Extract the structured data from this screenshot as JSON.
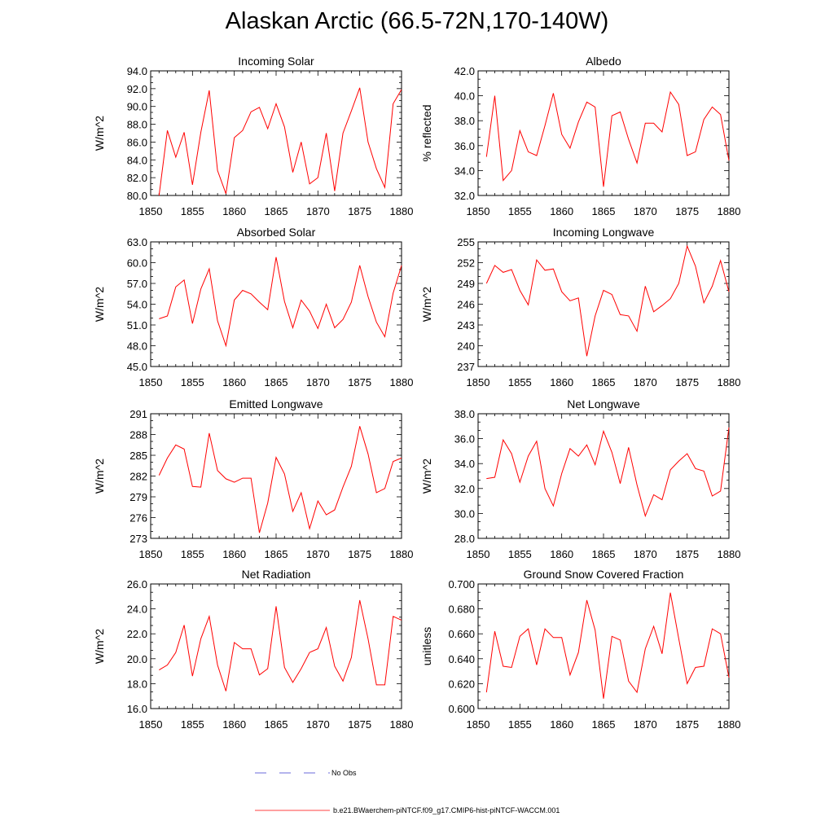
{
  "title": "Alaskan Arctic (66.5-72N,170-140W)",
  "legend": {
    "no_obs_label": "No Obs",
    "no_obs_color": "#3a3ad0",
    "model_label": "b.e21.BWaerchem-piNTCF.f09_g17.CMIP6-hist-piNTCF-WACCM.001",
    "model_color": "#ff0000"
  },
  "chart_data": [
    {
      "type": "line",
      "title": "Incoming Solar",
      "ylabel": "W/m^2",
      "xlim": [
        1850,
        1880
      ],
      "ylim": [
        80.0,
        94.0
      ],
      "xticks": [
        "1850",
        "1855",
        "1860",
        "1865",
        "1870",
        "1875",
        "1880"
      ],
      "yticks": [
        "80.0",
        "82.0",
        "84.0",
        "86.0",
        "88.0",
        "90.0",
        "92.0",
        "94.0"
      ],
      "x": [
        1851,
        1852,
        1853,
        1854,
        1855,
        1856,
        1857,
        1858,
        1859,
        1860,
        1861,
        1862,
        1863,
        1864,
        1865,
        1866,
        1867,
        1868,
        1869,
        1870,
        1871,
        1872,
        1873,
        1874,
        1875,
        1876,
        1877,
        1878,
        1879,
        1880
      ],
      "series": [
        {
          "values": [
            80.0,
            87.3,
            84.3,
            87.1,
            81.2,
            87.1,
            91.8,
            82.8,
            80.2,
            86.5,
            87.3,
            89.4,
            89.9,
            87.5,
            90.3,
            87.7,
            82.6,
            86.0,
            81.3,
            82.0,
            87.0,
            80.5,
            87.0,
            89.5,
            92.1,
            86.0,
            83.0,
            80.9,
            90.3,
            91.9
          ]
        }
      ]
    },
    {
      "type": "line",
      "title": "Albedo",
      "ylabel": "% reflected",
      "xlim": [
        1850,
        1880
      ],
      "ylim": [
        32.0,
        42.0
      ],
      "xticks": [
        "1850",
        "1855",
        "1860",
        "1865",
        "1870",
        "1875",
        "1880"
      ],
      "yticks": [
        "32.0",
        "34.0",
        "36.0",
        "38.0",
        "40.0",
        "42.0"
      ],
      "x": [
        1851,
        1852,
        1853,
        1854,
        1855,
        1856,
        1857,
        1858,
        1859,
        1860,
        1861,
        1862,
        1863,
        1864,
        1865,
        1866,
        1867,
        1868,
        1869,
        1870,
        1871,
        1872,
        1873,
        1874,
        1875,
        1876,
        1877,
        1878,
        1879,
        1880
      ],
      "series": [
        {
          "values": [
            35.1,
            40.0,
            33.2,
            34.0,
            37.2,
            35.5,
            35.2,
            37.6,
            40.2,
            36.9,
            35.8,
            37.9,
            39.5,
            39.1,
            32.7,
            38.4,
            38.7,
            36.5,
            34.6,
            37.8,
            37.8,
            37.1,
            40.3,
            39.3,
            35.2,
            35.5,
            38.1,
            39.1,
            38.5,
            34.8
          ]
        }
      ]
    },
    {
      "type": "line",
      "title": "Absorbed Solar",
      "ylabel": "W/m^2",
      "xlim": [
        1850,
        1880
      ],
      "ylim": [
        45.0,
        63.0
      ],
      "xticks": [
        "1850",
        "1855",
        "1860",
        "1865",
        "1870",
        "1875",
        "1880"
      ],
      "yticks": [
        "45.0",
        "48.0",
        "51.0",
        "54.0",
        "57.0",
        "60.0",
        "63.0"
      ],
      "x": [
        1851,
        1852,
        1853,
        1854,
        1855,
        1856,
        1857,
        1858,
        1859,
        1860,
        1861,
        1862,
        1863,
        1864,
        1865,
        1866,
        1867,
        1868,
        1869,
        1870,
        1871,
        1872,
        1873,
        1874,
        1875,
        1876,
        1877,
        1878,
        1879,
        1880
      ],
      "series": [
        {
          "values": [
            51.9,
            52.3,
            56.5,
            57.5,
            51.2,
            56.2,
            59.1,
            51.6,
            48.0,
            54.6,
            56.0,
            55.5,
            54.3,
            53.2,
            60.8,
            54.4,
            50.6,
            54.6,
            53.0,
            50.5,
            54.0,
            50.6,
            51.8,
            54.3,
            59.6,
            55.1,
            51.4,
            49.3,
            55.6,
            59.6
          ]
        }
      ]
    },
    {
      "type": "line",
      "title": "Incoming Longwave",
      "ylabel": "W/m^2",
      "xlim": [
        1850,
        1880
      ],
      "ylim": [
        237,
        255
      ],
      "xticks": [
        "1850",
        "1855",
        "1860",
        "1865",
        "1870",
        "1875",
        "1880"
      ],
      "yticks": [
        "237",
        "240",
        "243",
        "246",
        "249",
        "252",
        "255"
      ],
      "x": [
        1851,
        1852,
        1853,
        1854,
        1855,
        1856,
        1857,
        1858,
        1859,
        1860,
        1861,
        1862,
        1863,
        1864,
        1865,
        1866,
        1867,
        1868,
        1869,
        1870,
        1871,
        1872,
        1873,
        1874,
        1875,
        1876,
        1877,
        1878,
        1879,
        1880
      ],
      "series": [
        {
          "values": [
            249.0,
            251.6,
            250.6,
            251.0,
            248.0,
            245.9,
            252.4,
            250.9,
            251.1,
            247.8,
            246.5,
            246.9,
            238.5,
            244.3,
            248.0,
            247.4,
            244.5,
            244.3,
            242.1,
            248.6,
            244.9,
            245.8,
            246.8,
            249.0,
            254.4,
            251.5,
            246.2,
            248.6,
            252.3,
            247.8
          ]
        }
      ]
    },
    {
      "type": "line",
      "title": "Emitted Longwave",
      "ylabel": "W/m^2",
      "xlim": [
        1850,
        1880
      ],
      "ylim": [
        273,
        291
      ],
      "xticks": [
        "1850",
        "1855",
        "1860",
        "1865",
        "1870",
        "1875",
        "1880"
      ],
      "yticks": [
        "273",
        "276",
        "279",
        "282",
        "285",
        "288",
        "291"
      ],
      "x": [
        1851,
        1852,
        1853,
        1854,
        1855,
        1856,
        1857,
        1858,
        1859,
        1860,
        1861,
        1862,
        1863,
        1864,
        1865,
        1866,
        1867,
        1868,
        1869,
        1870,
        1871,
        1872,
        1873,
        1874,
        1875,
        1876,
        1877,
        1878,
        1879,
        1880
      ],
      "series": [
        {
          "values": [
            282.1,
            284.6,
            286.5,
            285.9,
            280.5,
            280.4,
            288.2,
            282.8,
            281.6,
            281.1,
            281.7,
            281.7,
            273.8,
            278.1,
            284.7,
            282.3,
            276.9,
            279.6,
            274.4,
            278.4,
            276.4,
            277.1,
            280.4,
            283.4,
            289.2,
            285.2,
            279.6,
            280.2,
            284.1,
            284.6
          ]
        }
      ]
    },
    {
      "type": "line",
      "title": "Net Longwave",
      "ylabel": "W/m^2",
      "xlim": [
        1850,
        1880
      ],
      "ylim": [
        28.0,
        38.0
      ],
      "xticks": [
        "1850",
        "1855",
        "1860",
        "1865",
        "1870",
        "1875",
        "1880"
      ],
      "yticks": [
        "28.0",
        "30.0",
        "32.0",
        "34.0",
        "36.0",
        "38.0"
      ],
      "x": [
        1851,
        1852,
        1853,
        1854,
        1855,
        1856,
        1857,
        1858,
        1859,
        1860,
        1861,
        1862,
        1863,
        1864,
        1865,
        1866,
        1867,
        1868,
        1869,
        1870,
        1871,
        1872,
        1873,
        1874,
        1875,
        1876,
        1877,
        1878,
        1879,
        1880
      ],
      "series": [
        {
          "values": [
            32.8,
            32.9,
            35.9,
            34.8,
            32.5,
            34.6,
            35.8,
            32.0,
            30.6,
            33.2,
            35.2,
            34.6,
            35.5,
            33.9,
            36.6,
            34.9,
            32.4,
            35.3,
            32.3,
            29.8,
            31.5,
            31.1,
            33.5,
            34.2,
            34.8,
            33.6,
            33.4,
            31.4,
            31.8,
            36.9
          ]
        }
      ]
    },
    {
      "type": "line",
      "title": "Net Radiation",
      "ylabel": "W/m^2",
      "xlim": [
        1850,
        1880
      ],
      "ylim": [
        16.0,
        26.0
      ],
      "xticks": [
        "1850",
        "1855",
        "1860",
        "1865",
        "1870",
        "1875",
        "1880"
      ],
      "yticks": [
        "16.0",
        "18.0",
        "20.0",
        "22.0",
        "24.0",
        "26.0"
      ],
      "x": [
        1851,
        1852,
        1853,
        1854,
        1855,
        1856,
        1857,
        1858,
        1859,
        1860,
        1861,
        1862,
        1863,
        1864,
        1865,
        1866,
        1867,
        1868,
        1869,
        1870,
        1871,
        1872,
        1873,
        1874,
        1875,
        1876,
        1877,
        1878,
        1879,
        1880
      ],
      "series": [
        {
          "values": [
            19.1,
            19.5,
            20.5,
            22.7,
            18.6,
            21.6,
            23.4,
            19.5,
            17.4,
            21.3,
            20.8,
            20.8,
            18.7,
            19.2,
            24.2,
            19.3,
            18.1,
            19.2,
            20.5,
            20.8,
            22.5,
            19.4,
            18.2,
            20.1,
            24.7,
            21.6,
            17.9,
            17.9,
            23.4,
            23.1
          ]
        }
      ]
    },
    {
      "type": "line",
      "title": "Ground Snow Covered Fraction",
      "ylabel": "unitless",
      "xlim": [
        1850,
        1880
      ],
      "ylim": [
        0.6,
        0.7
      ],
      "xticks": [
        "1850",
        "1855",
        "1860",
        "1865",
        "1870",
        "1875",
        "1880"
      ],
      "yticks": [
        "0.600",
        "0.620",
        "0.640",
        "0.660",
        "0.680",
        "0.700"
      ],
      "x": [
        1851,
        1852,
        1853,
        1854,
        1855,
        1856,
        1857,
        1858,
        1859,
        1860,
        1861,
        1862,
        1863,
        1864,
        1865,
        1866,
        1867,
        1868,
        1869,
        1870,
        1871,
        1872,
        1873,
        1874,
        1875,
        1876,
        1877,
        1878,
        1879,
        1880
      ],
      "series": [
        {
          "values": [
            0.613,
            0.662,
            0.634,
            0.633,
            0.658,
            0.664,
            0.635,
            0.664,
            0.657,
            0.657,
            0.627,
            0.645,
            0.687,
            0.663,
            0.608,
            0.658,
            0.655,
            0.622,
            0.613,
            0.648,
            0.666,
            0.644,
            0.693,
            0.656,
            0.62,
            0.633,
            0.634,
            0.664,
            0.66,
            0.625
          ]
        }
      ]
    }
  ]
}
